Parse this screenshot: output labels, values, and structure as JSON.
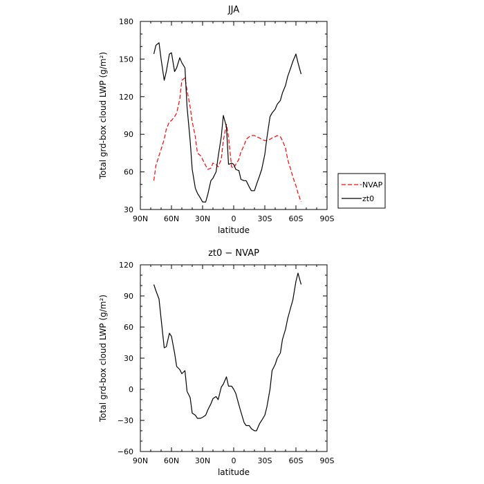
{
  "chart_data": [
    {
      "type": "line",
      "title": "JJA",
      "xlabel": "latitude",
      "ylabel": "Total grd-box cloud LWP (g/m²)",
      "xlim": [
        90,
        -90
      ],
      "ylim": [
        30,
        180
      ],
      "xticks": [
        90,
        60,
        30,
        0,
        -30,
        -60,
        -90
      ],
      "xtick_labels": [
        "90N",
        "60N",
        "30N",
        "0",
        "30S",
        "60S",
        "90S"
      ],
      "yticks": [
        30,
        60,
        90,
        120,
        150,
        180
      ],
      "ytick_labels": [
        "30",
        "60",
        "90",
        "120",
        "150",
        "180"
      ],
      "legend": {
        "placement": "right",
        "entries": [
          "NVAP",
          "zt0"
        ]
      },
      "series": [
        {
          "name": "NVAP",
          "color": "#ff0000",
          "style": "dashed",
          "x": [
            77,
            75,
            72,
            70,
            67,
            65,
            62,
            60,
            57,
            55,
            52,
            50,
            47,
            45,
            42,
            40,
            37,
            35,
            32,
            30,
            27,
            25,
            22,
            20,
            17,
            15,
            12,
            10,
            7,
            5,
            2,
            0,
            -2,
            -5,
            -7,
            -10,
            -12,
            -15,
            -17,
            -20,
            -22,
            -25,
            -27,
            -30,
            -32,
            -35,
            -37,
            -40,
            -42,
            -45,
            -47,
            -50,
            -52,
            -55,
            -57,
            -60,
            -62,
            -65
          ],
          "y": [
            53,
            65,
            73,
            78,
            86,
            94,
            100,
            101,
            104,
            107,
            118,
            133,
            135,
            125,
            112,
            100,
            88,
            75,
            73,
            70,
            65,
            62,
            63,
            67,
            66,
            64,
            70,
            85,
            98,
            88,
            64,
            63,
            66,
            70,
            76,
            81,
            86,
            88,
            89,
            89,
            88,
            87,
            86,
            85,
            85,
            86,
            87,
            88,
            89,
            88,
            85,
            79,
            70,
            62,
            56,
            49,
            43,
            36
          ]
        },
        {
          "name": "zt0",
          "color": "#000000",
          "style": "solid",
          "x": [
            77,
            75,
            72,
            70,
            67,
            65,
            62,
            60,
            57,
            55,
            52,
            50,
            47,
            45,
            42,
            40,
            37,
            35,
            32,
            30,
            27,
            25,
            22,
            20,
            17,
            15,
            12,
            10,
            7,
            5,
            2,
            0,
            -2,
            -5,
            -7,
            -10,
            -12,
            -15,
            -17,
            -20,
            -22,
            -25,
            -27,
            -30,
            -32,
            -35,
            -37,
            -40,
            -42,
            -45,
            -47,
            -50,
            -52,
            -55,
            -57,
            -60,
            -62,
            -65
          ],
          "y": [
            154,
            161,
            163,
            150,
            133,
            140,
            154,
            155,
            140,
            143,
            151,
            147,
            143,
            112,
            85,
            62,
            47,
            43,
            39,
            36,
            36,
            42,
            53,
            55,
            60,
            72,
            88,
            105,
            96,
            66,
            67,
            66,
            62,
            61,
            54,
            53,
            53,
            48,
            45,
            45,
            50,
            57,
            62,
            74,
            87,
            104,
            107,
            110,
            114,
            117,
            123,
            129,
            136,
            143,
            148,
            154,
            147,
            138
          ]
        }
      ]
    },
    {
      "type": "line",
      "title": "zt0 − NVAP",
      "xlabel": "latitude",
      "ylabel": "Total grd-box cloud LWP (g/m²)",
      "xlim": [
        90,
        -90
      ],
      "ylim": [
        -60,
        120
      ],
      "xticks": [
        90,
        60,
        30,
        0,
        -30,
        -60,
        -90
      ],
      "xtick_labels": [
        "90N",
        "60N",
        "30N",
        "0",
        "30S",
        "60S",
        "90S"
      ],
      "yticks": [
        -60,
        -30,
        0,
        30,
        60,
        90,
        120
      ],
      "ytick_labels": [
        "−60",
        "−30",
        "0",
        "30",
        "60",
        "90",
        "120"
      ],
      "series": [
        {
          "color": "#000000",
          "style": "solid",
          "x": [
            77,
            75,
            72,
            70,
            67,
            65,
            62,
            60,
            57,
            55,
            52,
            50,
            47,
            45,
            42,
            40,
            37,
            35,
            32,
            30,
            27,
            25,
            22,
            20,
            17,
            15,
            12,
            10,
            7,
            5,
            2,
            0,
            -2,
            -5,
            -7,
            -10,
            -12,
            -15,
            -17,
            -20,
            -22,
            -25,
            -27,
            -30,
            -32,
            -35,
            -37,
            -40,
            -42,
            -45,
            -47,
            -50,
            -52,
            -55,
            -57,
            -60,
            -62,
            -65
          ],
          "y": [
            101,
            95,
            87,
            68,
            40,
            41,
            54,
            51,
            35,
            22,
            19,
            15,
            18,
            -2,
            -8,
            -23,
            -25,
            -28,
            -28,
            -27,
            -25,
            -20,
            -14,
            -9,
            -7,
            -10,
            2,
            5,
            12,
            3,
            3,
            0,
            -4,
            -15,
            -22,
            -32,
            -35,
            -35,
            -38,
            -40,
            -40,
            -33,
            -30,
            -25,
            -17,
            0,
            18,
            24,
            30,
            35,
            48,
            58,
            68,
            79,
            86,
            104,
            112,
            101
          ]
        }
      ]
    }
  ]
}
